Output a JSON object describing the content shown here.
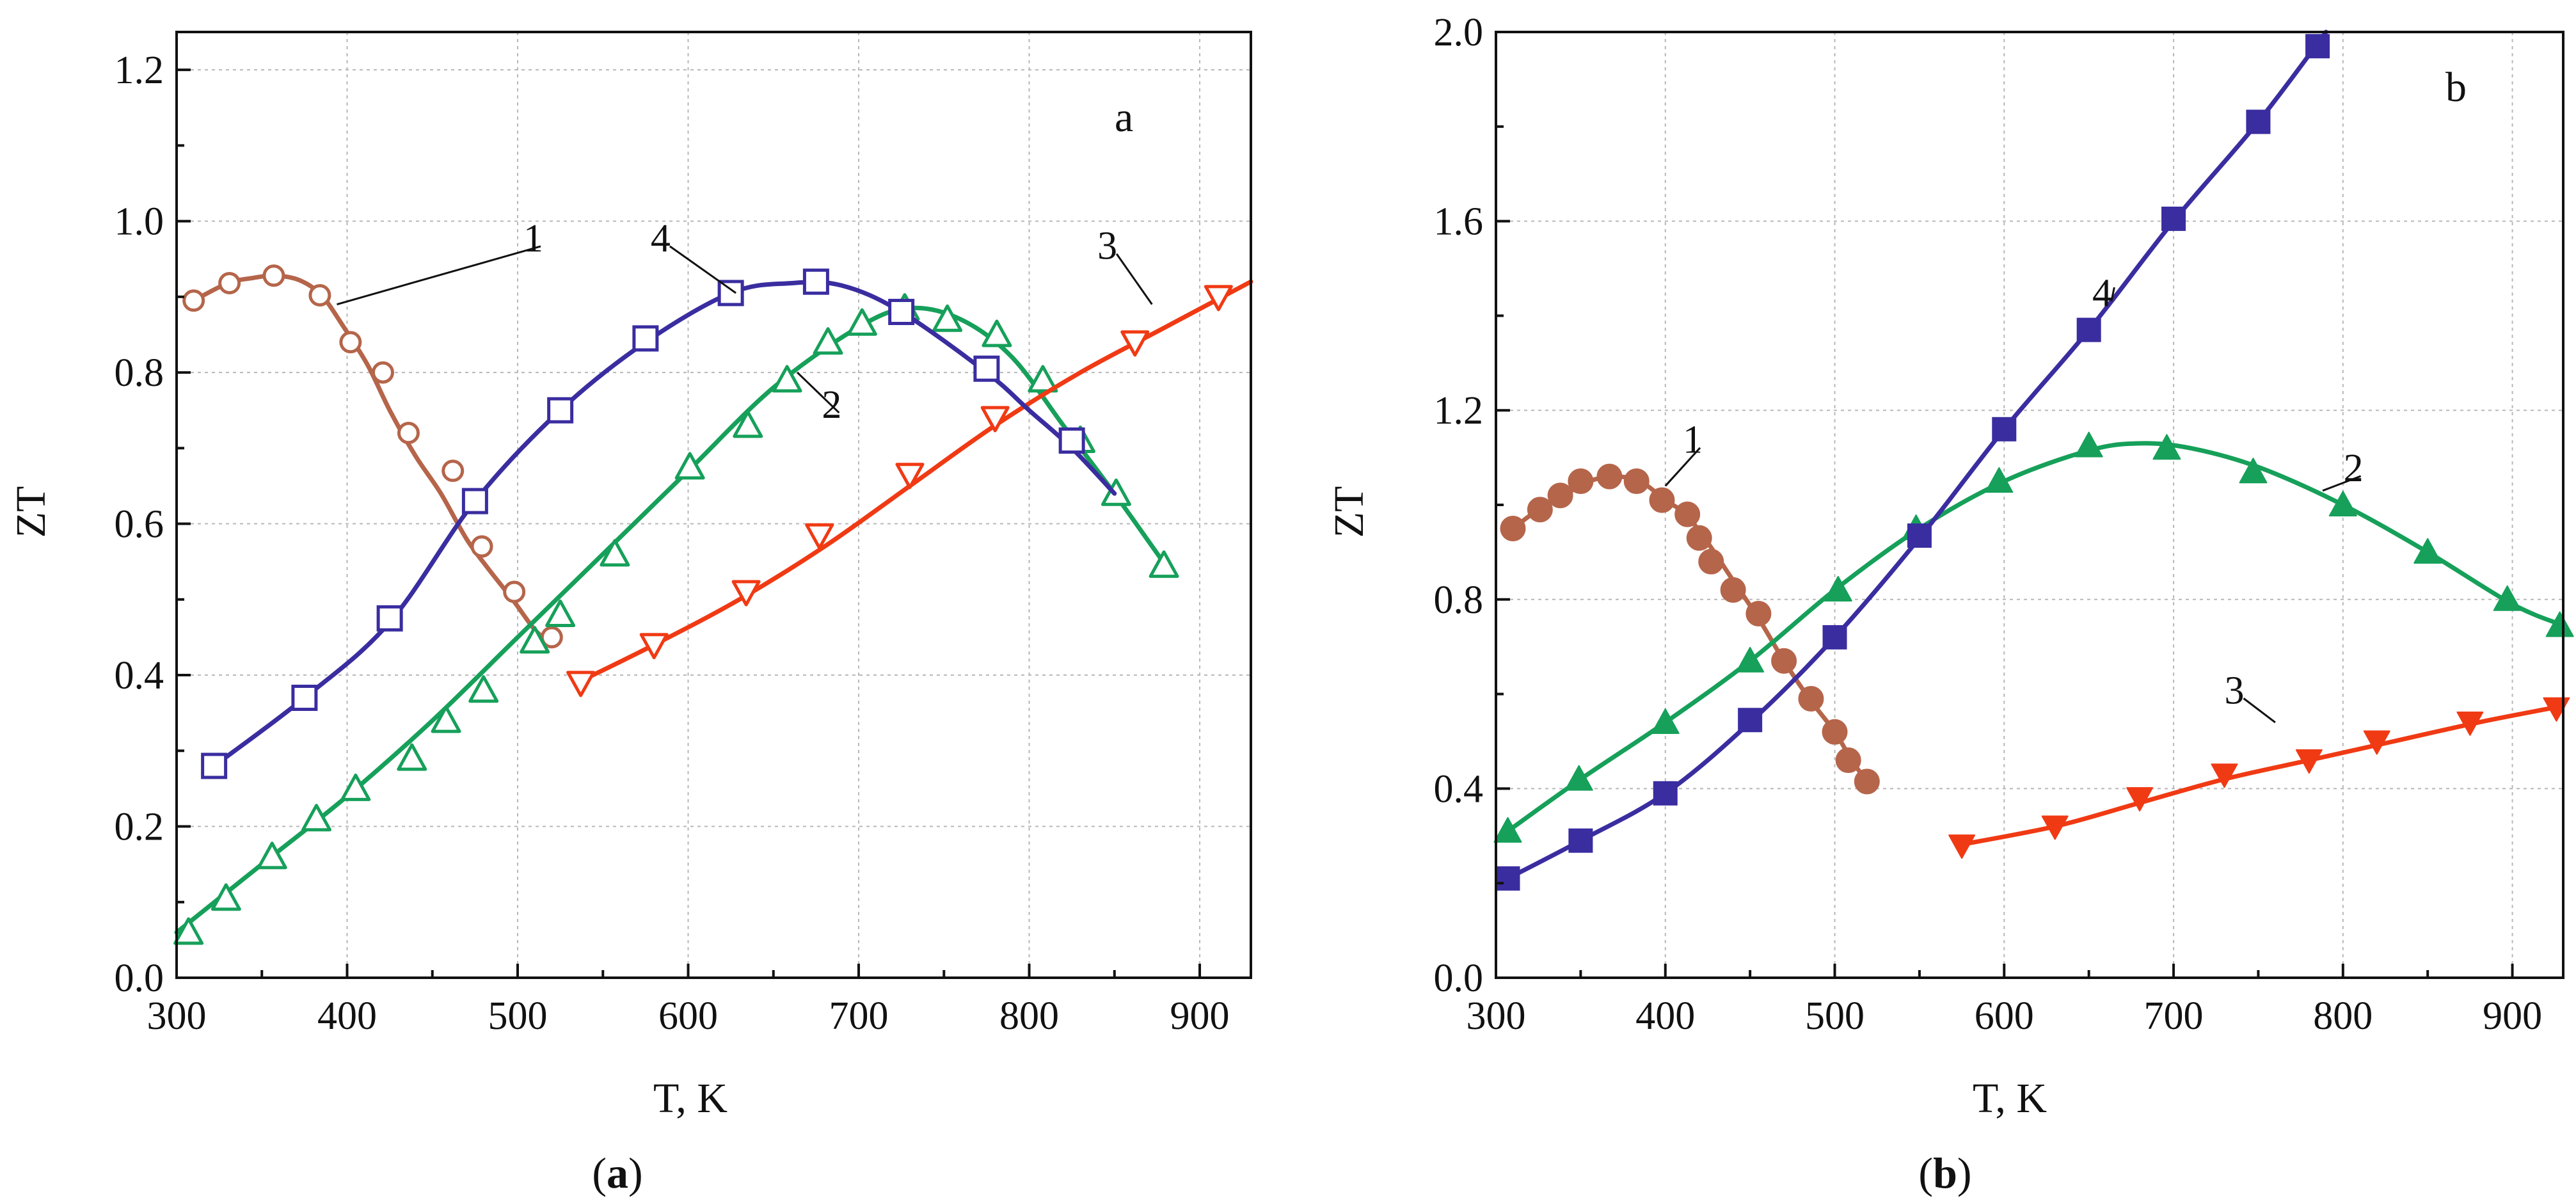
{
  "chart_data": [
    {
      "type": "line",
      "panel": "a",
      "panel_label": "a",
      "caption": {
        "open": "(",
        "letter": "a",
        "close": ")"
      },
      "xlabel": "T, K",
      "ylabel": "ZT",
      "xlim": [
        300,
        930
      ],
      "ylim": [
        0.0,
        1.25
      ],
      "xticks": [
        300,
        400,
        500,
        600,
        700,
        800,
        900
      ],
      "xtick_labels": [
        "300",
        "400",
        "500",
        "600",
        "700",
        "800",
        "900"
      ],
      "yticks": [
        0.0,
        0.2,
        0.4,
        0.6,
        0.8,
        1.0,
        1.2
      ],
      "ytick_labels": [
        "0.0",
        "0.2",
        "0.4",
        "0.6",
        "0.8",
        "1.0",
        "1.2"
      ],
      "grid": true,
      "series": [
        {
          "name": "1",
          "label": "1",
          "color": "#b5654a",
          "marker": "circle-open",
          "curve_x": [
            310,
            330,
            345,
            358,
            372,
            385,
            398,
            412,
            425,
            440,
            455,
            470,
            483,
            497,
            510,
            518
          ],
          "curve_y": [
            0.895,
            0.918,
            0.925,
            0.928,
            0.922,
            0.902,
            0.86,
            0.81,
            0.75,
            0.69,
            0.64,
            0.58,
            0.54,
            0.5,
            0.46,
            0.445
          ],
          "markers_x": [
            310,
            331,
            357,
            384,
            402,
            421,
            436,
            462,
            479,
            498,
            520
          ],
          "markers_y": [
            0.895,
            0.918,
            0.928,
            0.902,
            0.84,
            0.8,
            0.72,
            0.67,
            0.57,
            0.51,
            0.45
          ],
          "label_at": [
            515,
            0.96
          ],
          "leader_to": [
            394,
            0.89
          ]
        },
        {
          "name": "2",
          "label": "2",
          "color": "#16a05a",
          "marker": "triangle-open",
          "curve_x": [
            300,
            350,
            400,
            450,
            500,
            550,
            600,
            650,
            700,
            730,
            760,
            790,
            820,
            850,
            880
          ],
          "curve_y": [
            0.06,
            0.15,
            0.24,
            0.34,
            0.45,
            0.56,
            0.67,
            0.78,
            0.86,
            0.885,
            0.87,
            0.82,
            0.73,
            0.64,
            0.545
          ],
          "markers_x": [
            307,
            329,
            356,
            382,
            405,
            438,
            458,
            480,
            510,
            525,
            557,
            601,
            635,
            658,
            682,
            702,
            727,
            752,
            781,
            808,
            830,
            851,
            879
          ],
          "markers_y": [
            0.06,
            0.105,
            0.16,
            0.21,
            0.25,
            0.29,
            0.34,
            0.38,
            0.445,
            0.48,
            0.56,
            0.675,
            0.73,
            0.79,
            0.84,
            0.865,
            0.885,
            0.87,
            0.85,
            0.79,
            0.71,
            0.64,
            0.545
          ],
          "label_at": [
            690,
            0.74
          ],
          "leader_to": [
            664,
            0.8
          ]
        },
        {
          "name": "3",
          "label": "3",
          "color": "#f03a14",
          "marker": "triangle-down-open",
          "curve_x": [
            535,
            580,
            630,
            680,
            730,
            780,
            830,
            880,
            930
          ],
          "curve_y": [
            0.39,
            0.44,
            0.5,
            0.57,
            0.65,
            0.73,
            0.8,
            0.86,
            0.92
          ],
          "markers_x": [
            537,
            580,
            634,
            677,
            730,
            780,
            862,
            911
          ],
          "markers_y": [
            0.39,
            0.44,
            0.51,
            0.585,
            0.665,
            0.74,
            0.84,
            0.9
          ],
          "label_at": [
            840,
            0.95
          ],
          "leader_to": [
            872,
            0.89
          ]
        },
        {
          "name": "4",
          "label": "4",
          "color": "#3a2da0",
          "marker": "square-open",
          "curve_x": [
            322,
            375,
            425,
            475,
            525,
            575,
            625,
            660,
            690,
            725,
            775,
            800,
            825,
            850
          ],
          "curve_y": [
            0.28,
            0.37,
            0.47,
            0.63,
            0.75,
            0.84,
            0.905,
            0.918,
            0.915,
            0.88,
            0.8,
            0.75,
            0.7,
            0.64
          ],
          "markers_x": [
            322,
            375,
            425,
            475,
            525,
            575,
            625,
            675,
            725,
            775,
            825
          ],
          "markers_y": [
            0.28,
            0.37,
            0.475,
            0.63,
            0.75,
            0.845,
            0.905,
            0.92,
            0.88,
            0.805,
            0.71
          ],
          "label_at": [
            578,
            0.96
          ],
          "leader_to": [
            628,
            0.905
          ]
        }
      ]
    },
    {
      "type": "line",
      "panel": "b",
      "panel_label": "b",
      "caption": {
        "open": "(",
        "letter": "b",
        "close": ")"
      },
      "xlabel": "T, K",
      "ylabel": "ZT",
      "xlim": [
        300,
        930
      ],
      "ylim": [
        0.0,
        2.0
      ],
      "xticks": [
        300,
        400,
        500,
        600,
        700,
        800,
        900
      ],
      "xtick_labels": [
        "300",
        "400",
        "500",
        "600",
        "700",
        "800",
        "900"
      ],
      "yticks": [
        0.0,
        0.4,
        0.8,
        1.2,
        1.6,
        2.0
      ],
      "ytick_labels": [
        "0.0",
        "0.4",
        "0.8",
        "1.2",
        "1.6",
        "2.0"
      ],
      "grid": true,
      "series": [
        {
          "name": "1",
          "label": "1",
          "color": "#b5654a",
          "marker": "circle-filled",
          "curve_x": [
            310,
            325,
            340,
            355,
            370,
            385,
            400,
            412,
            425,
            440,
            455,
            470,
            485,
            500,
            510,
            520
          ],
          "curve_y": [
            0.95,
            0.99,
            1.02,
            1.05,
            1.06,
            1.05,
            1.01,
            0.98,
            0.92,
            0.84,
            0.76,
            0.67,
            0.59,
            0.52,
            0.46,
            0.41
          ],
          "markers_x": [
            310,
            326,
            338,
            350,
            367,
            383,
            398,
            413,
            420,
            427,
            440,
            455,
            470,
            486,
            500,
            508,
            519
          ],
          "markers_y": [
            0.95,
            0.99,
            1.02,
            1.05,
            1.06,
            1.05,
            1.01,
            0.98,
            0.93,
            0.88,
            0.82,
            0.77,
            0.67,
            0.59,
            0.52,
            0.46,
            0.415
          ],
          "label_at": [
            422,
            1.11
          ],
          "leader_to": [
            400,
            1.04
          ]
        },
        {
          "name": "2",
          "label": "2",
          "color": "#16a05a",
          "marker": "triangle-filled",
          "curve_x": [
            307,
            350,
            400,
            450,
            500,
            550,
            600,
            650,
            680,
            710,
            750,
            800,
            850,
            900,
            930
          ],
          "curve_y": [
            0.31,
            0.42,
            0.54,
            0.67,
            0.82,
            0.95,
            1.05,
            1.115,
            1.13,
            1.12,
            1.08,
            1.0,
            0.9,
            0.79,
            0.745
          ],
          "markers_x": [
            307,
            349,
            400,
            450,
            502,
            548,
            597,
            650,
            696,
            747,
            800,
            850,
            897,
            928
          ],
          "markers_y": [
            0.31,
            0.42,
            0.54,
            0.67,
            0.82,
            0.95,
            1.05,
            1.125,
            1.12,
            1.07,
            1.0,
            0.9,
            0.8,
            0.745
          ],
          "label_at": [
            812,
            1.05
          ],
          "leader_to": [
            788,
            1.03
          ]
        },
        {
          "name": "3",
          "label": "3",
          "color": "#f03a14",
          "marker": "triangle-down-filled",
          "curve_x": [
            572,
            630,
            680,
            730,
            780,
            830,
            880,
            930
          ],
          "curve_y": [
            0.28,
            0.32,
            0.37,
            0.42,
            0.46,
            0.5,
            0.54,
            0.575
          ],
          "markers_x": [
            575,
            630,
            680,
            730,
            780,
            820,
            875,
            926
          ],
          "markers_y": [
            0.28,
            0.32,
            0.38,
            0.43,
            0.46,
            0.5,
            0.54,
            0.57
          ],
          "label_at": [
            730,
            0.58
          ],
          "leader_to": [
            760,
            0.54
          ]
        },
        {
          "name": "4",
          "label": "4",
          "color": "#3a2da0",
          "marker": "square-filled",
          "curve_x": [
            307,
            350,
            400,
            450,
            500,
            550,
            600,
            650,
            700,
            750,
            790
          ],
          "curve_y": [
            0.21,
            0.29,
            0.39,
            0.54,
            0.72,
            0.93,
            1.16,
            1.37,
            1.6,
            1.81,
            2.0
          ],
          "markers_x": [
            307,
            350,
            400,
            450,
            500,
            550,
            600,
            650,
            700,
            750,
            785
          ],
          "markers_y": [
            0.21,
            0.29,
            0.39,
            0.545,
            0.72,
            0.935,
            1.16,
            1.37,
            1.605,
            1.81,
            1.97
          ],
          "label_at": [
            652,
            1.42
          ],
          "leader_to": [
            665,
            1.46
          ]
        }
      ]
    }
  ]
}
